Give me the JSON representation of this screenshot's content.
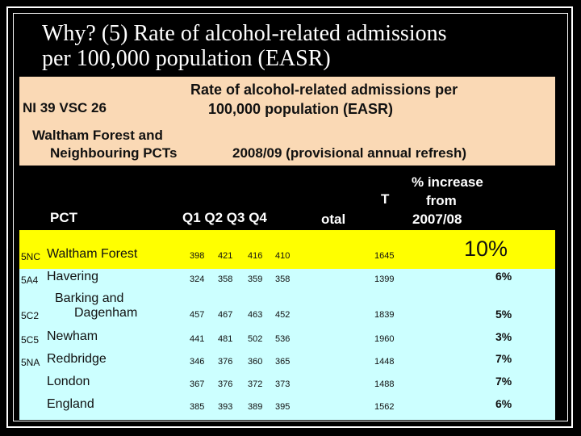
{
  "slide": {
    "title_line1": "Why? (5) Rate of alcohol-related admissions",
    "title_line2": "per 100,000 population (EASR)"
  },
  "panel": {
    "indicator": "NI 39 VSC 26",
    "heading_line1": "Rate of alcohol-related admissions per",
    "heading_line2": "100,000 population (EASR)",
    "area_line1": "Waltham Forest and",
    "area_line2": "Neighbouring PCTs",
    "period": "2008/09 (provisional annual refresh)"
  },
  "table": {
    "col_pct": "PCT",
    "col_quarters": "Q1  Q2  Q3  Q4",
    "col_total_part1": "T",
    "col_total_part2": "otal",
    "col_increase_line1": "% increase",
    "col_increase_line2": "from",
    "col_increase_line3": "2007/08",
    "rows": [
      {
        "code": "5NC",
        "name": "Waltham Forest",
        "q1": "398",
        "q2": "421",
        "q3": "416",
        "q4": "410",
        "total": "1645",
        "increase": "10%"
      },
      {
        "code": "5A4",
        "name": "Havering",
        "q1": "324",
        "q2": "358",
        "q3": "359",
        "q4": "358",
        "total": "1399",
        "increase": "6%"
      },
      {
        "code": "5C2",
        "name_line1": "Barking and",
        "name_line2": "Dagenham",
        "q1": "457",
        "q2": "467",
        "q3": "463",
        "q4": "452",
        "total": "1839",
        "increase": "5%"
      },
      {
        "code": "5C5",
        "name": "Newham",
        "q1": "441",
        "q2": "481",
        "q3": "502",
        "q4": "536",
        "total": "1960",
        "increase": "3%"
      },
      {
        "code": "5NA",
        "name": "Redbridge",
        "q1": "346",
        "q2": "376",
        "q3": "360",
        "q4": "365",
        "total": "1448",
        "increase": "7%"
      },
      {
        "code": "",
        "name": "London",
        "q1": "367",
        "q2": "376",
        "q3": "372",
        "q4": "373",
        "total": "1488",
        "increase": "7%"
      },
      {
        "code": "",
        "name": "England",
        "q1": "385",
        "q2": "393",
        "q3": "389",
        "q4": "395",
        "total": "1562",
        "increase": "6%"
      }
    ]
  },
  "colors": {
    "panel_bg": "#fad9b5",
    "highlight_row": "#ffff00",
    "table_bg": "#ccffff"
  }
}
